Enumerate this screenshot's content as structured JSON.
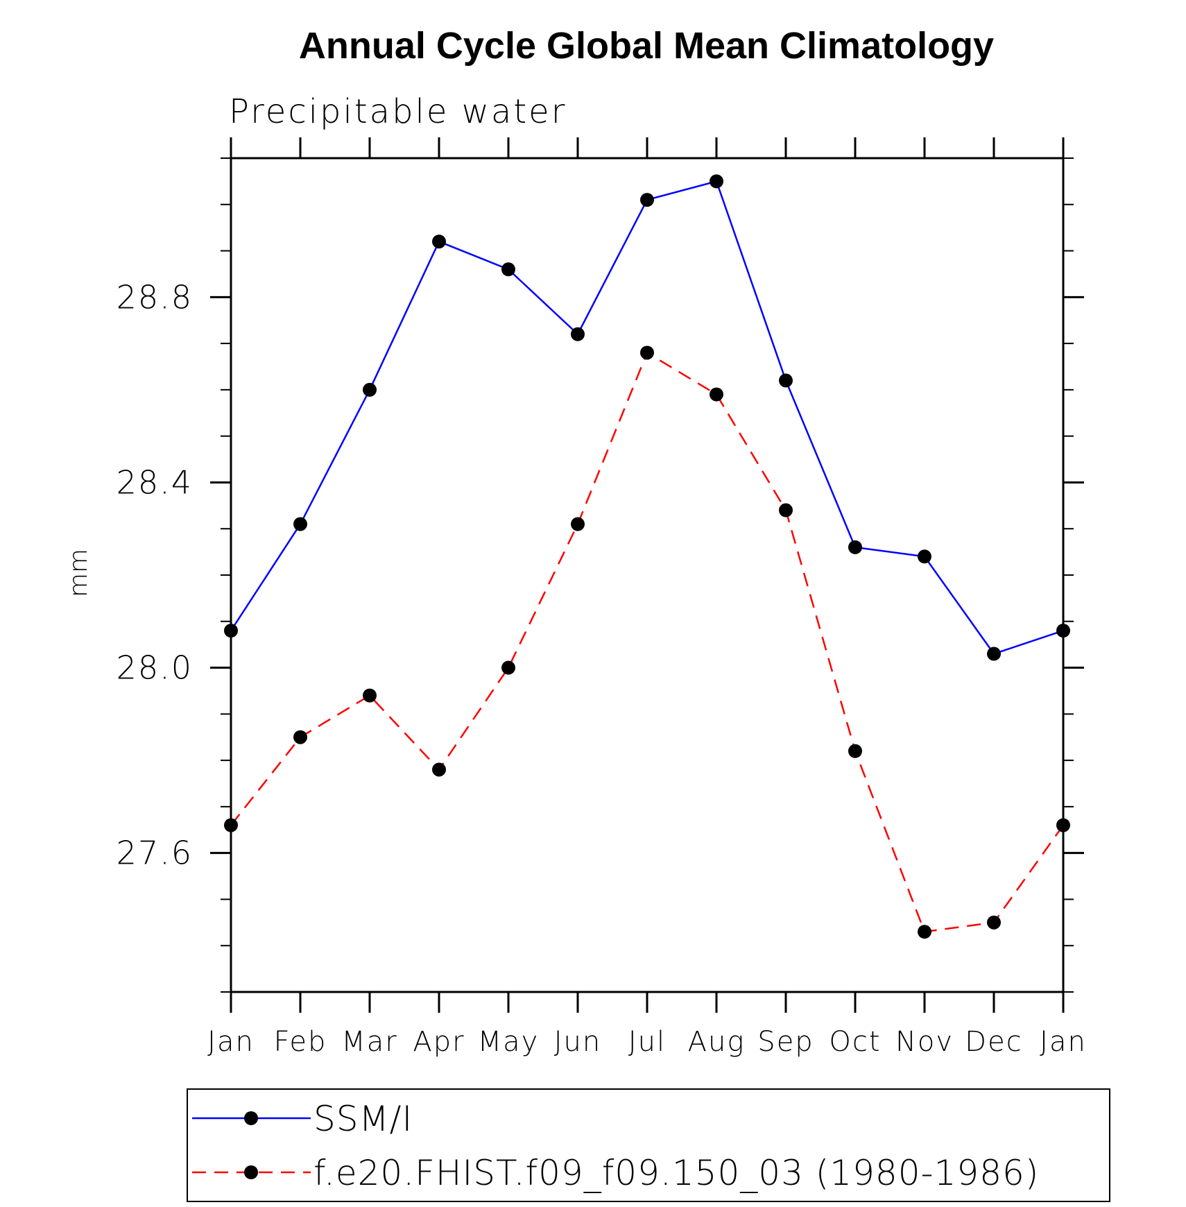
{
  "chart_data": {
    "type": "line",
    "title": "Annual Cycle Global Mean Climatology",
    "subtitle": "Precipitable water",
    "xlabel": "",
    "ylabel": "mm",
    "categories": [
      "Jan",
      "Feb",
      "Mar",
      "Apr",
      "May",
      "Jun",
      "Jul",
      "Aug",
      "Sep",
      "Oct",
      "Nov",
      "Dec",
      "Jan"
    ],
    "ylim": [
      27.3,
      29.1
    ],
    "yticks": [
      27.6,
      28.0,
      28.4,
      28.8
    ],
    "ytick_labels": [
      "27.6",
      "28.0",
      "28.4",
      "28.8"
    ],
    "yminor_step": 0.1,
    "grid": false,
    "legend_position": "bottom",
    "series": [
      {
        "name": "SSM/I",
        "color": "#0000ff",
        "line_style": "solid",
        "marker": "filled-circle",
        "marker_color": "#000000",
        "values": [
          28.08,
          28.31,
          28.6,
          28.92,
          28.86,
          28.72,
          29.01,
          29.05,
          28.62,
          28.26,
          28.24,
          28.03,
          28.08
        ]
      },
      {
        "name": "f.e20.FHIST.f09_f09.150_03 (1980-1986)",
        "color": "#ff0000",
        "line_style": "dashed",
        "marker": "filled-circle",
        "marker_color": "#000000",
        "values": [
          27.66,
          27.85,
          27.94,
          27.78,
          28.0,
          28.31,
          28.68,
          28.59,
          28.34,
          27.82,
          27.43,
          27.45,
          27.66
        ]
      }
    ]
  }
}
